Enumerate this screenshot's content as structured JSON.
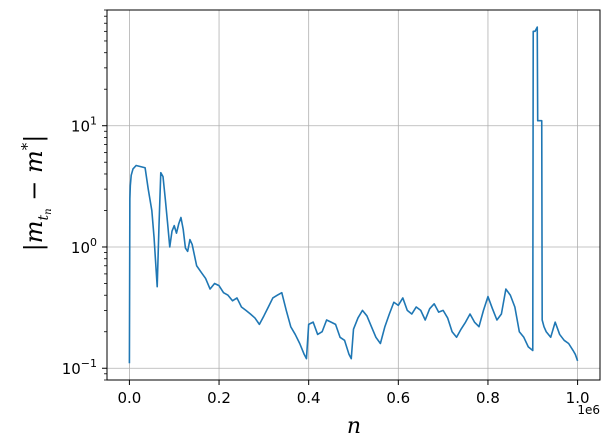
{
  "chart_data": {
    "type": "line",
    "xlabel": "n",
    "ylabel": "|m_{t_n} − m*|",
    "x_offset_label": "1e6",
    "x_scale": "linear",
    "y_scale": "log",
    "xlim": [
      -50000,
      1050000
    ],
    "ylim": [
      0.08,
      90
    ],
    "x_ticks": [
      {
        "value": 0,
        "label": "0.0"
      },
      {
        "value": 200000,
        "label": "0.2"
      },
      {
        "value": 400000,
        "label": "0.4"
      },
      {
        "value": 600000,
        "label": "0.6"
      },
      {
        "value": 800000,
        "label": "0.8"
      },
      {
        "value": 1000000,
        "label": "1.0"
      }
    ],
    "y_ticks": [
      {
        "value": 0.1,
        "base": "10",
        "exp": "−1"
      },
      {
        "value": 1,
        "base": "10",
        "exp": "0"
      },
      {
        "value": 10,
        "base": "10",
        "exp": "1"
      }
    ],
    "grid": true,
    "series": [
      {
        "color": "#1f77b4",
        "x": [
          0,
          1000,
          2000,
          4000,
          8000,
          15000,
          25000,
          35000,
          42000,
          50000,
          55000,
          58000,
          62000,
          66000,
          70000,
          75000,
          80000,
          85000,
          90000,
          95000,
          100000,
          105000,
          110000,
          115000,
          120000,
          125000,
          130000,
          135000,
          140000,
          150000,
          160000,
          170000,
          180000,
          190000,
          200000,
          210000,
          220000,
          230000,
          240000,
          250000,
          260000,
          270000,
          280000,
          290000,
          300000,
          310000,
          320000,
          330000,
          340000,
          350000,
          360000,
          370000,
          380000,
          390000,
          395000,
          400000,
          410000,
          420000,
          430000,
          440000,
          450000,
          460000,
          470000,
          480000,
          490000,
          495000,
          500000,
          510000,
          520000,
          530000,
          540000,
          550000,
          560000,
          570000,
          580000,
          590000,
          600000,
          610000,
          620000,
          630000,
          640000,
          650000,
          660000,
          670000,
          680000,
          690000,
          700000,
          710000,
          720000,
          730000,
          740000,
          750000,
          760000,
          770000,
          780000,
          790000,
          800000,
          810000,
          820000,
          830000,
          840000,
          850000,
          860000,
          870000,
          880000,
          890000,
          900000,
          901000,
          905000,
          910000,
          911000,
          915000,
          920000,
          921000,
          925000,
          930000,
          940000,
          950000,
          960000,
          970000,
          980000,
          990000,
          995000,
          1000000
        ],
        "y": [
          0.11,
          2.5,
          3.2,
          3.9,
          4.4,
          4.7,
          4.6,
          4.5,
          3.0,
          2.0,
          1.2,
          0.8,
          0.47,
          1.5,
          4.1,
          3.8,
          2.5,
          1.6,
          1.0,
          1.35,
          1.5,
          1.3,
          1.55,
          1.75,
          1.4,
          0.98,
          0.92,
          1.15,
          1.05,
          0.7,
          0.62,
          0.55,
          0.45,
          0.5,
          0.48,
          0.42,
          0.4,
          0.36,
          0.38,
          0.32,
          0.3,
          0.28,
          0.26,
          0.23,
          0.27,
          0.32,
          0.38,
          0.4,
          0.42,
          0.3,
          0.22,
          0.19,
          0.16,
          0.13,
          0.12,
          0.23,
          0.24,
          0.19,
          0.2,
          0.25,
          0.24,
          0.23,
          0.18,
          0.17,
          0.13,
          0.12,
          0.21,
          0.26,
          0.3,
          0.27,
          0.22,
          0.18,
          0.16,
          0.22,
          0.28,
          0.35,
          0.33,
          0.38,
          0.3,
          0.28,
          0.32,
          0.3,
          0.25,
          0.31,
          0.34,
          0.29,
          0.3,
          0.26,
          0.2,
          0.18,
          0.21,
          0.24,
          0.28,
          0.24,
          0.22,
          0.3,
          0.39,
          0.31,
          0.25,
          0.28,
          0.45,
          0.4,
          0.32,
          0.2,
          0.18,
          0.15,
          0.14,
          60.0,
          60.0,
          65.0,
          11.0,
          11.0,
          11.0,
          0.25,
          0.22,
          0.2,
          0.18,
          0.24,
          0.19,
          0.17,
          0.16,
          0.14,
          0.13,
          0.115
        ]
      }
    ]
  }
}
